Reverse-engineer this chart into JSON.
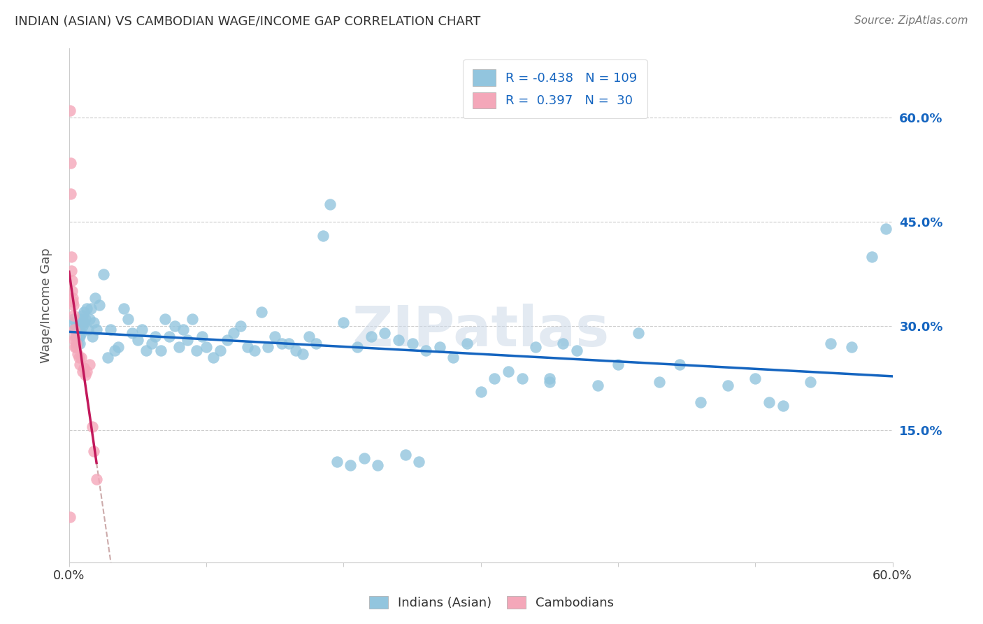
{
  "title": "INDIAN (ASIAN) VS CAMBODIAN WAGE/INCOME GAP CORRELATION CHART",
  "source": "Source: ZipAtlas.com",
  "ylabel": "Wage/Income Gap",
  "yticks_labels": [
    "60.0%",
    "45.0%",
    "30.0%",
    "15.0%"
  ],
  "ytick_values": [
    0.6,
    0.45,
    0.3,
    0.15
  ],
  "xlim": [
    0.0,
    0.6
  ],
  "ylim": [
    -0.04,
    0.7
  ],
  "legend_indian_R": "-0.438",
  "legend_indian_N": "109",
  "legend_cambodian_R": "0.397",
  "legend_cambodian_N": "30",
  "indian_color": "#92c5de",
  "cambodian_color": "#f4a7b9",
  "indian_line_color": "#1565c0",
  "cambodian_line_color": "#c2185b",
  "watermark": "ZIPatlas",
  "indian_x": [
    0.002,
    0.003,
    0.004,
    0.005,
    0.005,
    0.006,
    0.006,
    0.007,
    0.007,
    0.008,
    0.008,
    0.009,
    0.009,
    0.01,
    0.01,
    0.011,
    0.011,
    0.012,
    0.013,
    0.014,
    0.015,
    0.016,
    0.017,
    0.018,
    0.019,
    0.02,
    0.022,
    0.025,
    0.028,
    0.03,
    0.033,
    0.036,
    0.04,
    0.043,
    0.046,
    0.05,
    0.053,
    0.056,
    0.06,
    0.063,
    0.067,
    0.07,
    0.073,
    0.077,
    0.08,
    0.083,
    0.086,
    0.09,
    0.093,
    0.097,
    0.1,
    0.105,
    0.11,
    0.115,
    0.12,
    0.125,
    0.13,
    0.135,
    0.14,
    0.145,
    0.15,
    0.155,
    0.16,
    0.165,
    0.17,
    0.175,
    0.18,
    0.19,
    0.2,
    0.21,
    0.22,
    0.23,
    0.24,
    0.25,
    0.26,
    0.27,
    0.28,
    0.29,
    0.3,
    0.31,
    0.32,
    0.33,
    0.34,
    0.35,
    0.36,
    0.37,
    0.385,
    0.4,
    0.415,
    0.43,
    0.445,
    0.46,
    0.48,
    0.5,
    0.51,
    0.52,
    0.54,
    0.555,
    0.57,
    0.585,
    0.595,
    0.35,
    0.185,
    0.195,
    0.205,
    0.215,
    0.225,
    0.245,
    0.255
  ],
  "indian_y": [
    0.305,
    0.31,
    0.295,
    0.285,
    0.3,
    0.275,
    0.295,
    0.285,
    0.3,
    0.275,
    0.285,
    0.29,
    0.31,
    0.3,
    0.315,
    0.305,
    0.32,
    0.31,
    0.325,
    0.295,
    0.31,
    0.325,
    0.285,
    0.305,
    0.34,
    0.295,
    0.33,
    0.375,
    0.255,
    0.295,
    0.265,
    0.27,
    0.325,
    0.31,
    0.29,
    0.28,
    0.295,
    0.265,
    0.275,
    0.285,
    0.265,
    0.31,
    0.285,
    0.3,
    0.27,
    0.295,
    0.28,
    0.31,
    0.265,
    0.285,
    0.27,
    0.255,
    0.265,
    0.28,
    0.29,
    0.3,
    0.27,
    0.265,
    0.32,
    0.27,
    0.285,
    0.275,
    0.275,
    0.265,
    0.26,
    0.285,
    0.275,
    0.475,
    0.305,
    0.27,
    0.285,
    0.29,
    0.28,
    0.275,
    0.265,
    0.27,
    0.255,
    0.275,
    0.205,
    0.225,
    0.235,
    0.225,
    0.27,
    0.22,
    0.275,
    0.265,
    0.215,
    0.245,
    0.29,
    0.22,
    0.245,
    0.19,
    0.215,
    0.225,
    0.19,
    0.185,
    0.22,
    0.275,
    0.27,
    0.4,
    0.44,
    0.225,
    0.43,
    0.105,
    0.1,
    0.11,
    0.1,
    0.115,
    0.105
  ],
  "cambodian_x": [
    0.0005,
    0.0005,
    0.001,
    0.001,
    0.0015,
    0.0015,
    0.002,
    0.002,
    0.0025,
    0.0025,
    0.003,
    0.003,
    0.0035,
    0.0035,
    0.004,
    0.004,
    0.005,
    0.005,
    0.006,
    0.007,
    0.008,
    0.009,
    0.01,
    0.011,
    0.012,
    0.013,
    0.015,
    0.017,
    0.018,
    0.02
  ],
  "cambodian_y": [
    0.025,
    0.61,
    0.49,
    0.535,
    0.38,
    0.4,
    0.35,
    0.365,
    0.335,
    0.34,
    0.315,
    0.33,
    0.28,
    0.295,
    0.27,
    0.285,
    0.27,
    0.275,
    0.26,
    0.255,
    0.245,
    0.255,
    0.235,
    0.24,
    0.23,
    0.235,
    0.245,
    0.155,
    0.12,
    0.08
  ]
}
